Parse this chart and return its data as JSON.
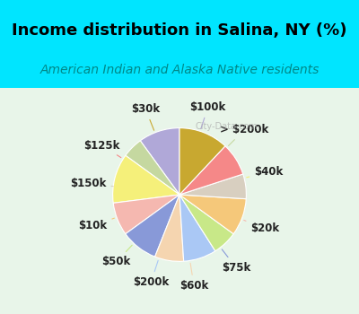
{
  "title": "Income distribution in Salina, NY (%)",
  "subtitle": "American Indian and Alaska Native residents",
  "watermark": "City-Data.com",
  "background_top": "#00e5ff",
  "background_chart": "#e8f5e9",
  "slices": [
    {
      "label": "$100k",
      "value": 10,
      "color": "#b0a8d8"
    },
    {
      "label": "> $200k",
      "value": 5,
      "color": "#c5d8a0"
    },
    {
      "label": "$40k",
      "value": 12,
      "color": "#f5f07a"
    },
    {
      "label": "$20k",
      "value": 8,
      "color": "#f5b8b0"
    },
    {
      "label": "$75k",
      "value": 9,
      "color": "#8899d8"
    },
    {
      "label": "$60k",
      "value": 7,
      "color": "#f5d5b0"
    },
    {
      "label": "$200k",
      "value": 8,
      "color": "#aac8f5"
    },
    {
      "label": "$50k",
      "value": 6,
      "color": "#c8e888"
    },
    {
      "label": "$10k",
      "value": 9,
      "color": "#f5c87a"
    },
    {
      "label": "$150k",
      "value": 6,
      "color": "#d8cfc0"
    },
    {
      "label": "$125k",
      "value": 8,
      "color": "#f58888"
    },
    {
      "label": "$30k",
      "value": 12,
      "color": "#c8a830"
    }
  ],
  "label_fontsize": 8.5,
  "title_fontsize": 13,
  "subtitle_fontsize": 10,
  "title_color": "#000000",
  "subtitle_color": "#008888"
}
